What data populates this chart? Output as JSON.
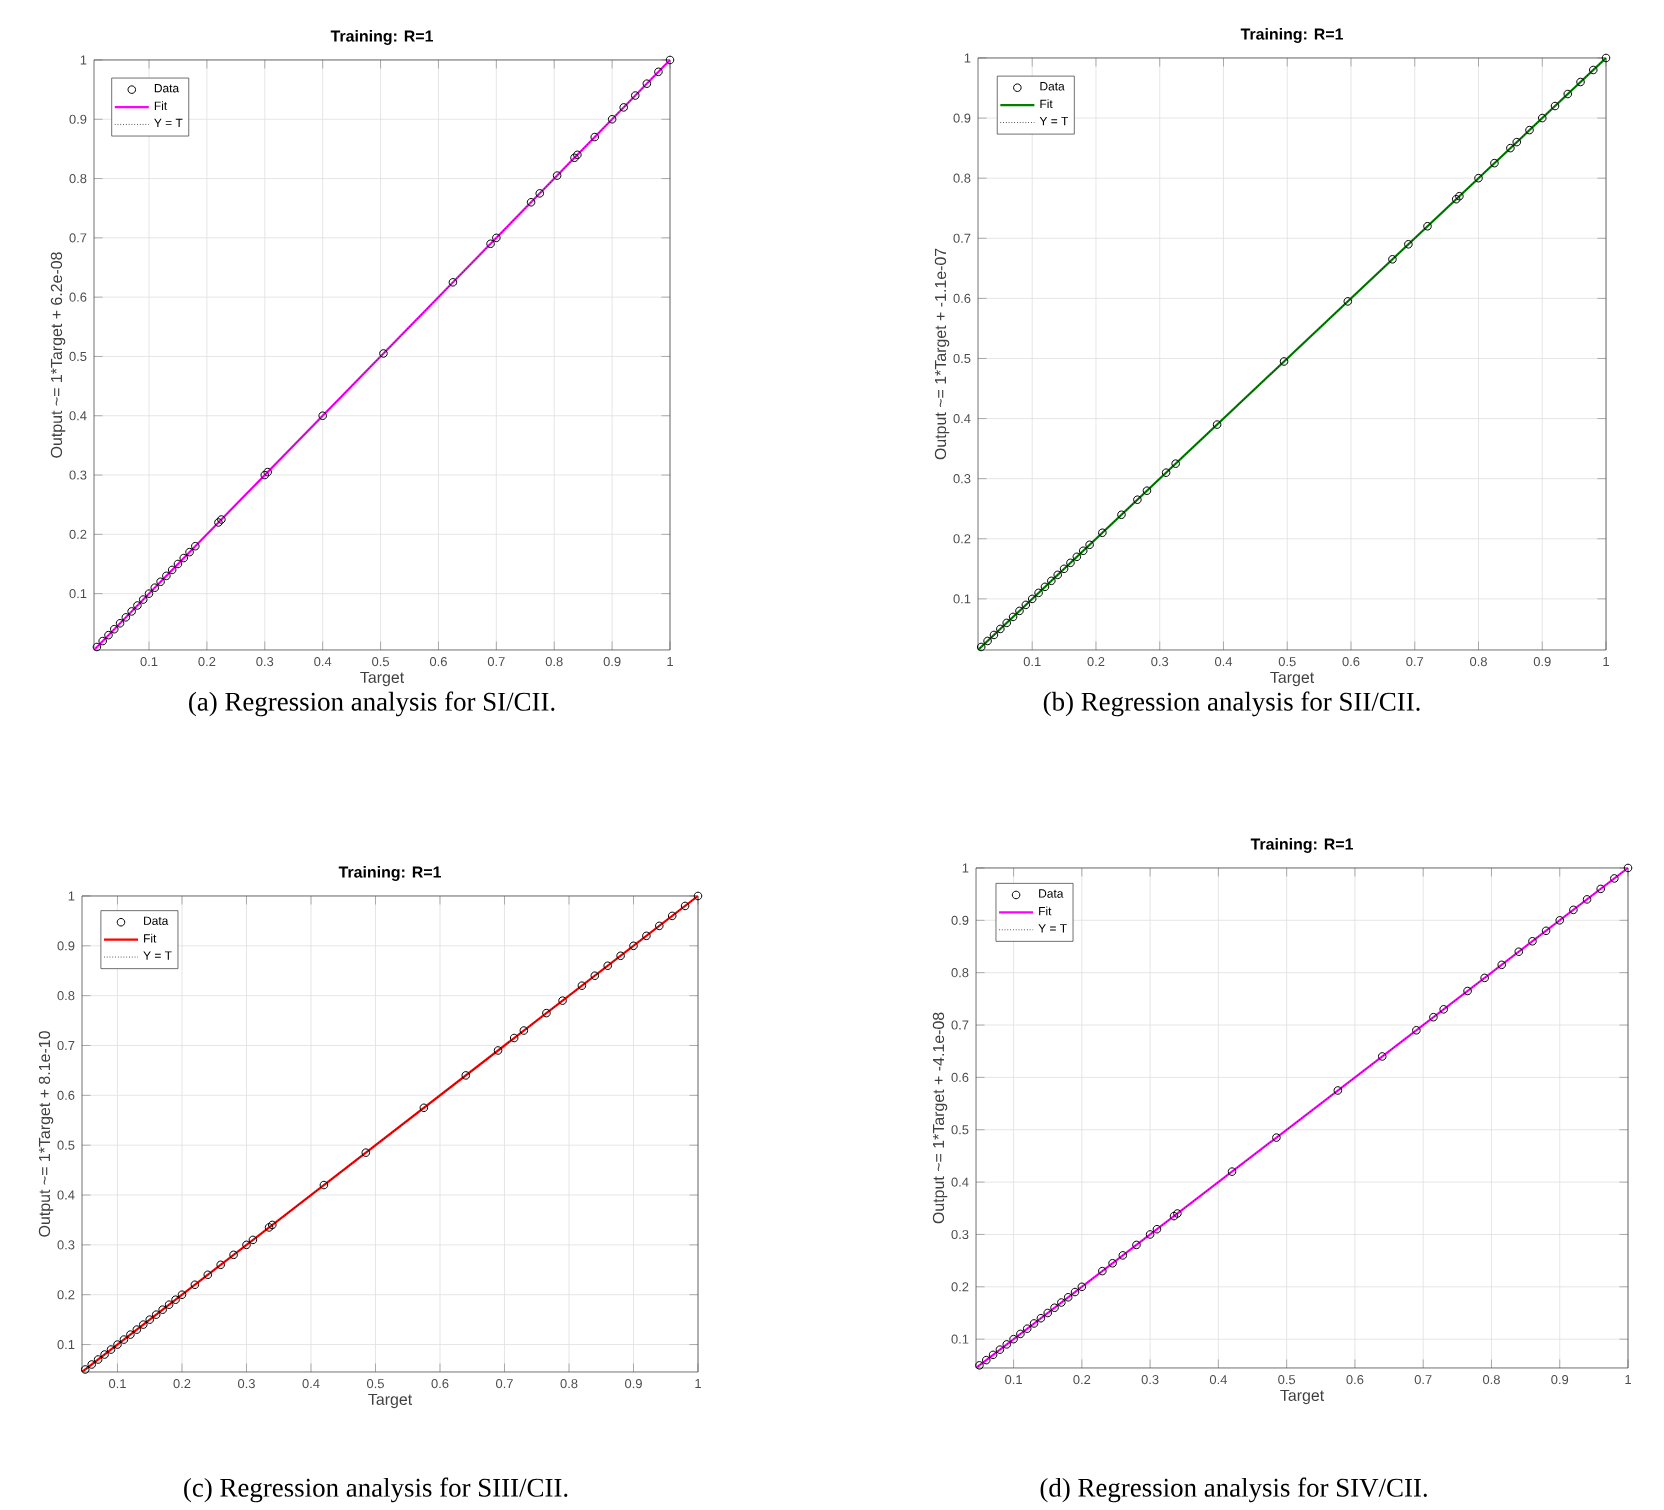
{
  "chart_data": [
    {
      "type": "scatter",
      "title": "Training: R=1",
      "xlabel": "Target",
      "ylabel": "Output ~= 1*Target + 6.2e-08",
      "xlim": [
        0.005,
        1
      ],
      "ylim": [
        0.005,
        1
      ],
      "xticks": [
        0.1,
        0.2,
        0.3,
        0.4,
        0.5,
        0.6,
        0.7,
        0.8,
        0.9,
        1
      ],
      "yticks": [
        0.1,
        0.2,
        0.3,
        0.4,
        0.5,
        0.6,
        0.7,
        0.8,
        0.9,
        1
      ],
      "grid": true,
      "legend": "top left",
      "annotations": [
        "(a) Regression analysis for  SI/CII."
      ],
      "series": [
        {
          "name": "Data",
          "type": "scatter",
          "marker": "circle",
          "color": "#000000",
          "x": [
            0.01,
            0.02,
            0.03,
            0.04,
            0.05,
            0.06,
            0.07,
            0.08,
            0.09,
            0.1,
            0.11,
            0.12,
            0.13,
            0.14,
            0.15,
            0.16,
            0.17,
            0.18,
            0.22,
            0.225,
            0.3,
            0.305,
            0.4,
            0.505,
            0.625,
            0.69,
            0.7,
            0.76,
            0.775,
            0.805,
            0.835,
            0.84,
            0.87,
            0.9,
            0.92,
            0.94,
            0.96,
            0.98,
            1
          ],
          "values": [
            0.01,
            0.02,
            0.03,
            0.04,
            0.05,
            0.06,
            0.07,
            0.08,
            0.09,
            0.1,
            0.11,
            0.12,
            0.13,
            0.14,
            0.15,
            0.16,
            0.17,
            0.18,
            0.22,
            0.225,
            0.3,
            0.305,
            0.4,
            0.505,
            0.625,
            0.69,
            0.7,
            0.76,
            0.775,
            0.805,
            0.835,
            0.84,
            0.87,
            0.9,
            0.92,
            0.94,
            0.96,
            0.98,
            1
          ]
        },
        {
          "name": "Fit",
          "type": "line",
          "marker": "none",
          "line_style": "solid",
          "color": "#ff00ff",
          "x": [
            0.005,
            1
          ],
          "values": [
            0.005,
            1
          ]
        },
        {
          "name": "Y = T",
          "type": "line",
          "marker": "none",
          "line_style": "dotted",
          "color": "#000000",
          "x": [
            0.005,
            1
          ],
          "values": [
            0.005,
            1
          ]
        }
      ]
    },
    {
      "type": "scatter",
      "title": "Training: R=1",
      "xlabel": "Target",
      "ylabel": "Output ~= 1*Target + -1.1e-07",
      "xlim": [
        0.015,
        1
      ],
      "ylim": [
        0.015,
        1
      ],
      "xticks": [
        0.1,
        0.2,
        0.3,
        0.4,
        0.5,
        0.6,
        0.7,
        0.8,
        0.9,
        1
      ],
      "yticks": [
        0.1,
        0.2,
        0.3,
        0.4,
        0.5,
        0.6,
        0.7,
        0.8,
        0.9,
        1
      ],
      "grid": true,
      "legend": "top left",
      "annotations": [
        "(b) Regression analysis for  SII/CII."
      ],
      "series": [
        {
          "name": "Data",
          "type": "scatter",
          "marker": "circle",
          "color": "#000000",
          "x": [
            0.02,
            0.03,
            0.04,
            0.05,
            0.06,
            0.07,
            0.08,
            0.09,
            0.1,
            0.11,
            0.12,
            0.13,
            0.14,
            0.15,
            0.16,
            0.17,
            0.18,
            0.19,
            0.21,
            0.24,
            0.265,
            0.28,
            0.31,
            0.325,
            0.39,
            0.495,
            0.595,
            0.665,
            0.69,
            0.72,
            0.765,
            0.77,
            0.8,
            0.825,
            0.85,
            0.86,
            0.88,
            0.9,
            0.92,
            0.94,
            0.96,
            0.98,
            1
          ],
          "values": [
            0.02,
            0.03,
            0.04,
            0.05,
            0.06,
            0.07,
            0.08,
            0.09,
            0.1,
            0.11,
            0.12,
            0.13,
            0.14,
            0.15,
            0.16,
            0.17,
            0.18,
            0.19,
            0.21,
            0.24,
            0.265,
            0.28,
            0.31,
            0.325,
            0.39,
            0.495,
            0.595,
            0.665,
            0.69,
            0.72,
            0.765,
            0.77,
            0.8,
            0.825,
            0.85,
            0.86,
            0.88,
            0.9,
            0.92,
            0.94,
            0.96,
            0.98,
            1
          ]
        },
        {
          "name": "Fit",
          "type": "line",
          "marker": "none",
          "line_style": "solid",
          "color": "#008000",
          "x": [
            0.015,
            1
          ],
          "values": [
            0.015,
            1
          ]
        },
        {
          "name": "Y = T",
          "type": "line",
          "marker": "none",
          "line_style": "dotted",
          "color": "#000000",
          "x": [
            0.015,
            1
          ],
          "values": [
            0.015,
            1
          ]
        }
      ]
    },
    {
      "type": "scatter",
      "title": "Training: R=1",
      "xlabel": "Target",
      "ylabel": "Output ~= 1*Target + 8.1e-10",
      "xlim": [
        0.045,
        1
      ],
      "ylim": [
        0.045,
        1
      ],
      "xticks": [
        0.1,
        0.2,
        0.3,
        0.4,
        0.5,
        0.6,
        0.7,
        0.8,
        0.9,
        1
      ],
      "yticks": [
        0.1,
        0.2,
        0.3,
        0.4,
        0.5,
        0.6,
        0.7,
        0.8,
        0.9,
        1
      ],
      "grid": true,
      "legend": "top left",
      "annotations": [
        "(c) Regression analysis for  SIII/CII."
      ],
      "series": [
        {
          "name": "Data",
          "type": "scatter",
          "marker": "circle",
          "color": "#000000",
          "x": [
            0.05,
            0.06,
            0.07,
            0.08,
            0.09,
            0.1,
            0.11,
            0.12,
            0.13,
            0.14,
            0.15,
            0.16,
            0.17,
            0.18,
            0.19,
            0.2,
            0.22,
            0.24,
            0.26,
            0.28,
            0.3,
            0.31,
            0.335,
            0.34,
            0.42,
            0.485,
            0.575,
            0.64,
            0.69,
            0.715,
            0.73,
            0.765,
            0.79,
            0.82,
            0.84,
            0.86,
            0.88,
            0.9,
            0.92,
            0.94,
            0.96,
            0.98,
            1
          ],
          "values": [
            0.05,
            0.06,
            0.07,
            0.08,
            0.09,
            0.1,
            0.11,
            0.12,
            0.13,
            0.14,
            0.15,
            0.16,
            0.17,
            0.18,
            0.19,
            0.2,
            0.22,
            0.24,
            0.26,
            0.28,
            0.3,
            0.31,
            0.335,
            0.34,
            0.42,
            0.485,
            0.575,
            0.64,
            0.69,
            0.715,
            0.73,
            0.765,
            0.79,
            0.82,
            0.84,
            0.86,
            0.88,
            0.9,
            0.92,
            0.94,
            0.96,
            0.98,
            1
          ]
        },
        {
          "name": "Fit",
          "type": "line",
          "marker": "none",
          "line_style": "solid",
          "color": "#ff0000",
          "x": [
            0.045,
            1
          ],
          "values": [
            0.045,
            1
          ]
        },
        {
          "name": "Y = T",
          "type": "line",
          "marker": "none",
          "line_style": "dotted",
          "color": "#000000",
          "x": [
            0.045,
            1
          ],
          "values": [
            0.045,
            1
          ]
        }
      ]
    },
    {
      "type": "scatter",
      "title": "Training: R=1",
      "xlabel": "Target",
      "ylabel": "Output ~= 1*Target + -4.1e-08",
      "xlim": [
        0.045,
        1
      ],
      "ylim": [
        0.045,
        1
      ],
      "xticks": [
        0.1,
        0.2,
        0.3,
        0.4,
        0.5,
        0.6,
        0.7,
        0.8,
        0.9,
        1
      ],
      "yticks": [
        0.1,
        0.2,
        0.3,
        0.4,
        0.5,
        0.6,
        0.7,
        0.8,
        0.9,
        1
      ],
      "grid": true,
      "legend": "top left",
      "annotations": [
        "(d) Regression analysis for  SIV/CII."
      ],
      "series": [
        {
          "name": "Data",
          "type": "scatter",
          "marker": "circle",
          "color": "#000000",
          "x": [
            0.05,
            0.06,
            0.07,
            0.08,
            0.09,
            0.1,
            0.11,
            0.12,
            0.13,
            0.14,
            0.15,
            0.16,
            0.17,
            0.18,
            0.19,
            0.2,
            0.23,
            0.245,
            0.26,
            0.28,
            0.3,
            0.31,
            0.335,
            0.34,
            0.42,
            0.485,
            0.575,
            0.64,
            0.69,
            0.715,
            0.73,
            0.765,
            0.79,
            0.815,
            0.84,
            0.86,
            0.88,
            0.9,
            0.92,
            0.94,
            0.96,
            0.98,
            1
          ],
          "values": [
            0.05,
            0.06,
            0.07,
            0.08,
            0.09,
            0.1,
            0.11,
            0.12,
            0.13,
            0.14,
            0.15,
            0.16,
            0.17,
            0.18,
            0.19,
            0.2,
            0.23,
            0.245,
            0.26,
            0.28,
            0.3,
            0.31,
            0.335,
            0.34,
            0.42,
            0.485,
            0.575,
            0.64,
            0.69,
            0.715,
            0.73,
            0.765,
            0.79,
            0.815,
            0.84,
            0.86,
            0.88,
            0.9,
            0.92,
            0.94,
            0.96,
            0.98,
            1
          ]
        },
        {
          "name": "Fit",
          "type": "line",
          "marker": "none",
          "line_style": "solid",
          "color": "#ff00ff",
          "x": [
            0.045,
            1
          ],
          "values": [
            0.045,
            1
          ]
        },
        {
          "name": "Y = T",
          "type": "line",
          "marker": "none",
          "line_style": "dotted",
          "color": "#000000",
          "x": [
            0.045,
            1
          ],
          "values": [
            0.045,
            1
          ]
        }
      ]
    }
  ]
}
